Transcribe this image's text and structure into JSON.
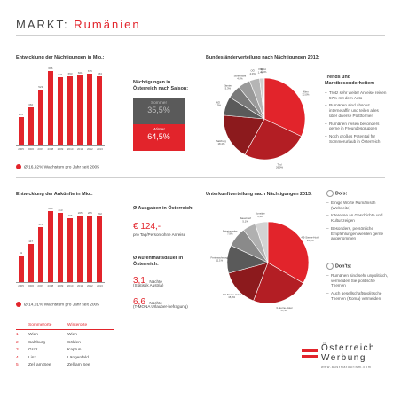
{
  "header": {
    "title_prefix": "MARKT:",
    "title_country": "Rumänien"
  },
  "colors": {
    "accent": "#e2242b",
    "dark_red": "#a8191e",
    "gray_dark": "#5a5a5a",
    "gray_light": "#bdbdbd"
  },
  "overnight": {
    "heading": "Entwicklung der Nächtigungen in Mio.:",
    "growth": "Ø 16,92% Wachstum pro Jahr seit 2005"
  },
  "arrivals": {
    "heading": "Entwicklung der Ankünfte in Mio.:",
    "growth": "Ø 14,01% Wachstum pro Jahr seit 2005"
  },
  "chart_data": [
    {
      "type": "bar",
      "title": "Entwicklung der Nächtigungen in Mio.:",
      "categories": [
        "2005",
        "2006",
        "2007",
        "2008",
        "2009",
        "2010",
        "2011",
        "2012",
        "2013"
      ],
      "values": [
        270,
        360,
        523,
        696,
        641,
        653,
        661,
        675,
        653
      ],
      "labels": [
        "270",
        "360",
        "523",
        "696",
        "641",
        "653",
        "661",
        "675",
        "653"
      ],
      "ylim": [
        0,
        700
      ]
    },
    {
      "type": "bar",
      "title": "Entwicklung der Ankünfte in Mio.:",
      "categories": [
        "2005",
        "2006",
        "2007",
        "2008",
        "2009",
        "2010",
        "2011",
        "2012",
        "2013"
      ],
      "values": [
        81,
        117,
        170,
        218,
        213,
        196,
        205,
        205,
        202
      ],
      "labels": [
        "81",
        "117",
        "170",
        "218",
        "213",
        "196",
        "205",
        "205",
        "202"
      ],
      "ylim": [
        0,
        230
      ]
    },
    {
      "type": "pie",
      "title": "Bundesländerverteilung nach Nächtigungen 2013:",
      "slices": [
        {
          "label": "Wien",
          "value": 32.0,
          "text": "32,0%"
        },
        {
          "label": "Tirol",
          "value": 26.0,
          "text": "26,0%"
        },
        {
          "label": "Salzburg",
          "value": 18.4,
          "text": "18,4%"
        },
        {
          "label": "NÖ",
          "value": 7.5,
          "text": "7,5%"
        },
        {
          "label": "Kärnten",
          "value": 5.3,
          "text": "5,3%"
        },
        {
          "label": "Steiermark",
          "value": 4.9,
          "text": "4,9%"
        },
        {
          "label": "OÖ",
          "value": 4.0,
          "text": "4,0%"
        },
        {
          "label": "Vbg.",
          "value": 1.4,
          "text": "1,4%"
        },
        {
          "label": "Bgld.",
          "value": 0.5,
          "text": "0,5%"
        }
      ]
    },
    {
      "type": "pie",
      "title": "Unterkunftverteilung nach Nächtigungen 2013:",
      "slices": [
        {
          "label": "4/5-Sterne-Hotel",
          "value": 33.4,
          "text": "33,4%"
        },
        {
          "label": "3-Sterne-Hotel",
          "value": 22.4,
          "text": "22,4%"
        },
        {
          "label": "1/2-Sterne-Hotel",
          "value": 15.0,
          "text": "15,0%"
        },
        {
          "label": "Ferienwohnung",
          "value": 11.1,
          "text": "11,1%"
        },
        {
          "label": "Privatquartier",
          "value": 7.9,
          "text": "7,9%"
        },
        {
          "label": "Bauernhof",
          "value": 5.1,
          "text": "5,1%"
        },
        {
          "label": "Sonstige",
          "value": 5.1,
          "text": "5,1%"
        }
      ]
    }
  ],
  "season": {
    "heading": "Nächtigungen in Österreich nach Saison:",
    "summer_label": "Sommer",
    "summer_value": "35,5%",
    "winter_label": "Winter",
    "winter_value": "64,5%"
  },
  "trends": {
    "heading": "Trends und Marktbesonderheiten:",
    "items": [
      "Trotz sehr weiter Anreise reisen 57% mit dem Auto",
      "Rumänen sind absolut internetaffin und teilen alles über diverse Plattformen",
      "Rumänen reisen besonders gerne in Freundesgruppen",
      "Noch großes Potential für Sommerurlaub in Österreich"
    ]
  },
  "spending": {
    "heading": "Ø Ausgaben in Österreich:",
    "value": "€ 124,-",
    "note": "pro Tag/Person ohne Anreise"
  },
  "stay": {
    "heading": "Ø Aufenthaltsdauer in Österreich:",
    "value1": "3,1",
    "unit1": "Nächte",
    "note1": "(Statistik Austria)",
    "value2": "6,6",
    "unit2": "Nächte",
    "note2": "(T-MONA Urlauber-befragung)"
  },
  "places": {
    "summer_head": "Sommerorte",
    "winter_head": "Winterorte",
    "rows": [
      {
        "n": "1",
        "summer": "Wien",
        "winter": "Wien"
      },
      {
        "n": "2",
        "summer": "Salzburg",
        "winter": "Sölden"
      },
      {
        "n": "3",
        "summer": "Graz",
        "winter": "Kaprun"
      },
      {
        "n": "4",
        "summer": "Linz",
        "winter": "Längenfeld"
      },
      {
        "n": "5",
        "summer": "Zell am See",
        "winter": "Zell am See"
      }
    ]
  },
  "dos": {
    "heading": "Do's:",
    "items": [
      "Einige Worte Rumänisch (Webseite)",
      "Interesse an Geschichte und Kultur zeigen",
      "Besonders, persönliche Empfehlungen werden gerne angenommen"
    ]
  },
  "donts": {
    "heading": "Don'ts:",
    "items": [
      "Rumänen sind sehr unpolitisch, vermeiden Sie politische Themen",
      "Auch gesellschaftspolitische Themen (Roma) vermeiden"
    ]
  },
  "logo": {
    "line1": "Österreich",
    "line2": "Werbung",
    "url": "www.austriatourism.com"
  }
}
